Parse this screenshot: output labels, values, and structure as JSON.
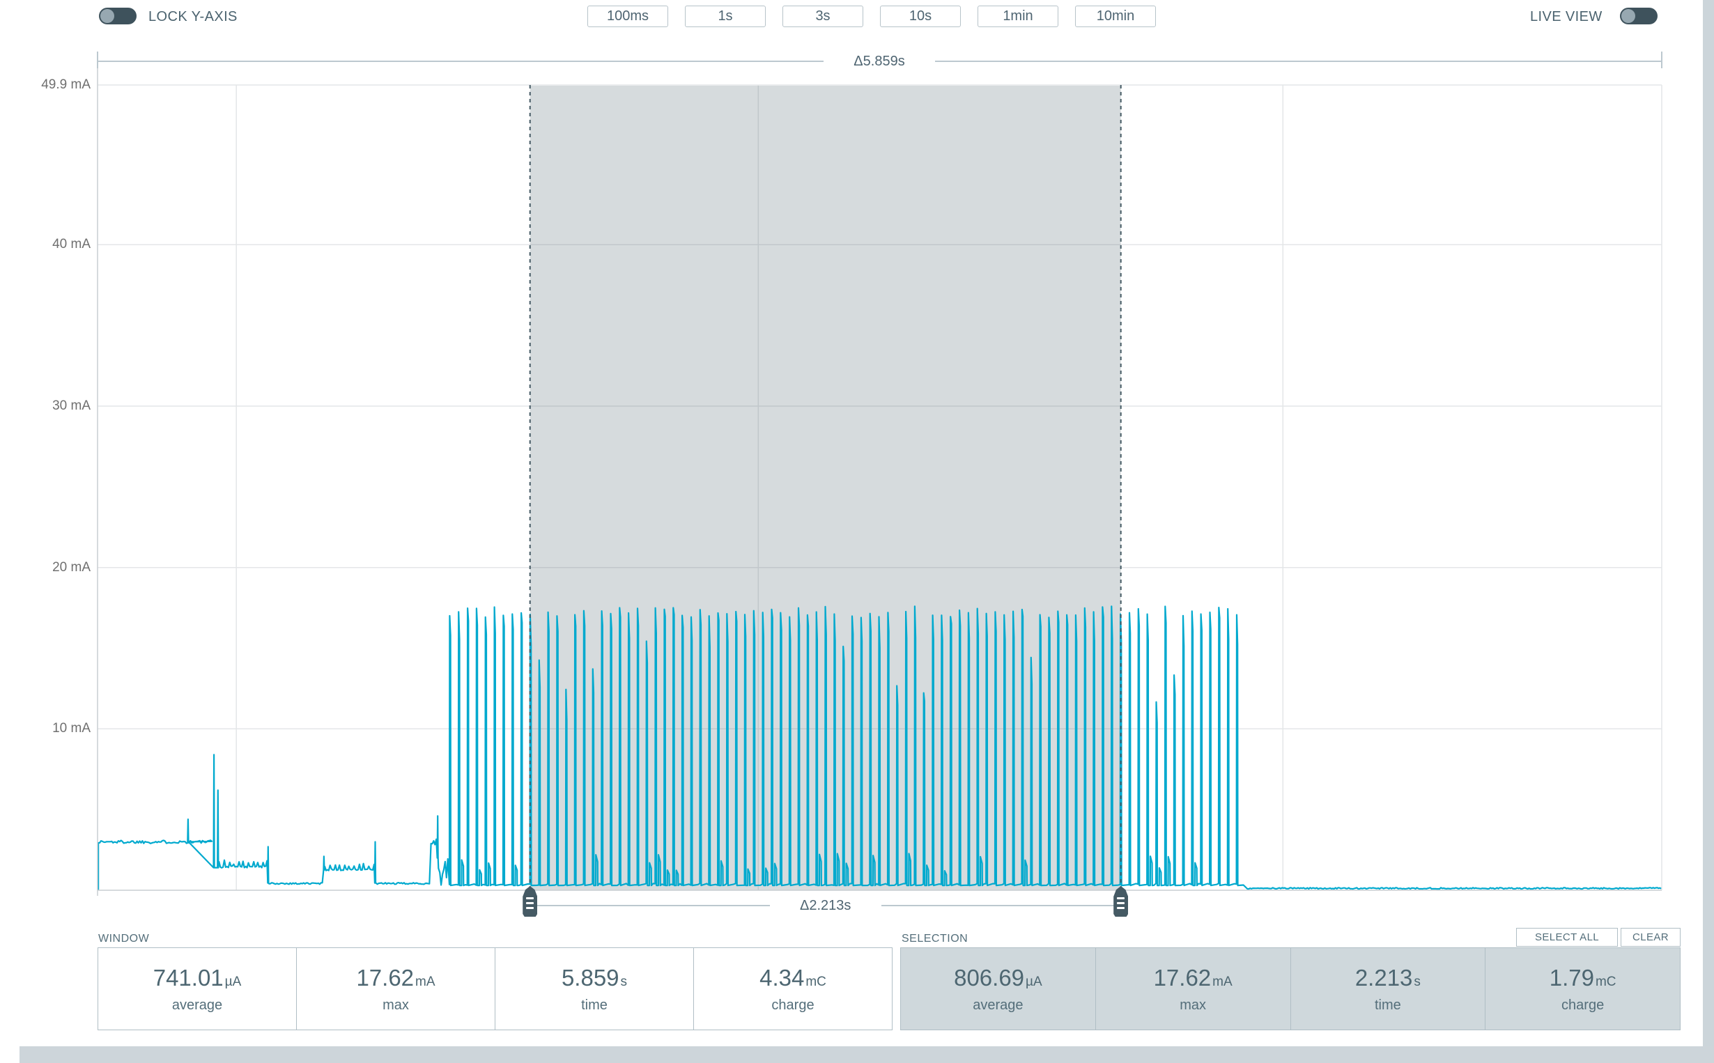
{
  "topbar": {
    "lock_y_axis_label": "LOCK Y-AXIS",
    "live_view_label": "LIVE VIEW",
    "window_buttons": [
      "100ms",
      "1s",
      "3s",
      "10s",
      "1min",
      "10min"
    ]
  },
  "rulers": {
    "window_delta": "Δ5.859s",
    "selection_delta": "Δ2.213s"
  },
  "chart_data": {
    "type": "line",
    "y_unit": "mA",
    "y_max_mA": 49.9,
    "x_span_s": 5.859,
    "y_ticks": [
      {
        "label": "49.9 mA",
        "mA": 49.9
      },
      {
        "label": "40 mA",
        "mA": 40
      },
      {
        "label": "30 mA",
        "mA": 30
      },
      {
        "label": "20 mA",
        "mA": 20
      },
      {
        "label": "10 mA",
        "mA": 10
      }
    ],
    "v_gridlines_t": [
      0.52,
      2.475,
      4.44
    ],
    "selection": {
      "t0_s": 1.62,
      "t1_s": 3.833
    },
    "trace_color": "#00a9ce",
    "selection_fill": "rgba(69,90,100,0.22)",
    "selection_line_color": "#455a64",
    "grid_color": "#e4e6e8",
    "axis_color": "#c9ced2",
    "ruler_color": "#bcc8cf",
    "segments": [
      {
        "type": "flat",
        "t0": 0.003,
        "t1": 0.431,
        "mA": 3.0,
        "noise_mA": 0.1
      },
      {
        "type": "spike",
        "t": 0.339,
        "peak_mA": 4.4,
        "base_mA": 3.0
      },
      {
        "type": "spike",
        "t": 0.436,
        "peak_mA": 8.4,
        "base_mA": 1.4
      },
      {
        "type": "spike",
        "t": 0.451,
        "peak_mA": 6.2,
        "base_mA": 1.4
      },
      {
        "type": "flat",
        "t0": 0.455,
        "t1": 0.637,
        "mA": 1.45,
        "noise_mA": 0.06,
        "teeth_mA": 0.35,
        "teeth_period_s": 0.018
      },
      {
        "type": "spike",
        "t": 0.639,
        "peak_mA": 2.7,
        "base_mA": 0.45
      },
      {
        "type": "flat",
        "t0": 0.642,
        "t1": 0.846,
        "mA": 0.42,
        "noise_mA": 0.05
      },
      {
        "type": "spike",
        "t": 0.848,
        "peak_mA": 2.1,
        "base_mA": 1.25
      },
      {
        "type": "flat",
        "t0": 0.851,
        "t1": 1.038,
        "mA": 1.27,
        "noise_mA": 0.05,
        "teeth_mA": 0.3,
        "teeth_period_s": 0.018
      },
      {
        "type": "spike",
        "t": 1.04,
        "peak_mA": 3.0,
        "base_mA": 0.45
      },
      {
        "type": "flat",
        "t0": 1.043,
        "t1": 1.247,
        "mA": 0.42,
        "noise_mA": 0.05
      },
      {
        "type": "flat",
        "t0": 1.249,
        "t1": 1.271,
        "mA": 3.0,
        "noise_mA": 0.25
      },
      {
        "type": "spike",
        "t": 1.274,
        "peak_mA": 4.6,
        "base_mA": 2.0
      },
      {
        "type": "flat",
        "t0": 1.277,
        "t1": 1.316,
        "mA": 1.1,
        "noise_mA": 0.85
      },
      {
        "type": "train",
        "t0": 1.318,
        "t1": 4.305,
        "period_s": 0.0335,
        "peak_mA_min": 16.9,
        "peak_mA_max": 17.62,
        "base_mA": 0.3,
        "base_noise_mA": 0.12,
        "bump_probability": 0.3,
        "short_peak_probability": 0.08
      },
      {
        "type": "flat",
        "t0": 4.307,
        "t1": 5.859,
        "mA": 0.12,
        "noise_mA": 0.04
      }
    ]
  },
  "window_stats": {
    "title": "WINDOW",
    "cells": [
      {
        "value": "741.01",
        "unit": "µA",
        "label": "average"
      },
      {
        "value": "17.62",
        "unit": "mA",
        "label": "max"
      },
      {
        "value": "5.859",
        "unit": "s",
        "label": "time"
      },
      {
        "value": "4.34",
        "unit": "mC",
        "label": "charge"
      }
    ]
  },
  "selection_stats": {
    "title": "SELECTION",
    "cells": [
      {
        "value": "806.69",
        "unit": "µA",
        "label": "average"
      },
      {
        "value": "17.62",
        "unit": "mA",
        "label": "max"
      },
      {
        "value": "2.213",
        "unit": "s",
        "label": "time"
      },
      {
        "value": "1.79",
        "unit": "mC",
        "label": "charge"
      }
    ],
    "buttons": [
      "SELECT ALL",
      "CLEAR"
    ]
  }
}
